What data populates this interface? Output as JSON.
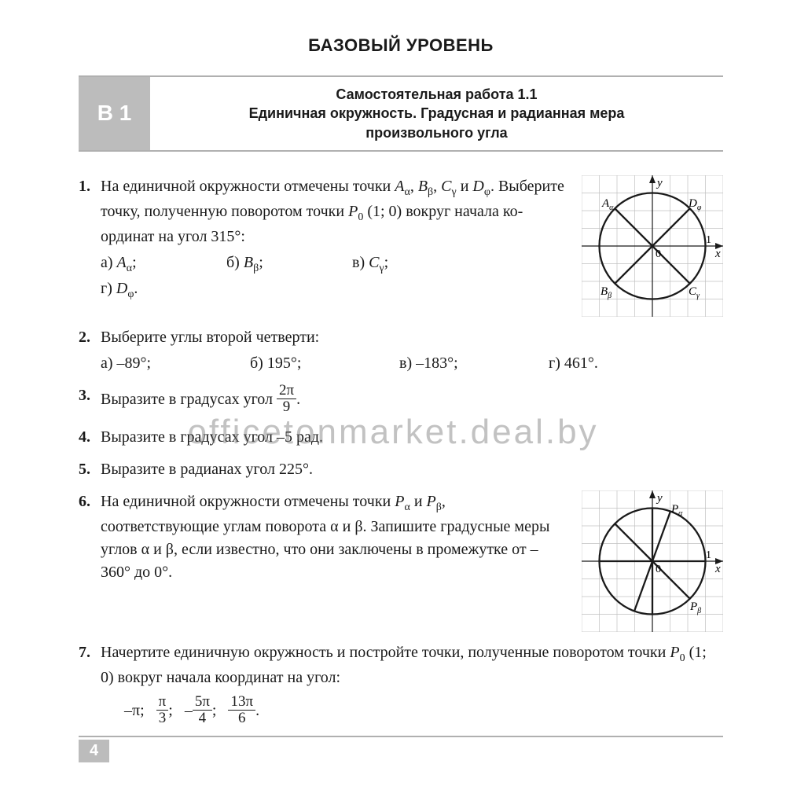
{
  "level_title": "БАЗОВЫЙ УРОВЕНЬ",
  "variant": "В 1",
  "section_title_l1": "Самостоятельная работа 1.1",
  "section_title_l2": "Единичная окружность. Градусная и радианная мера",
  "section_title_l3": "произвольного угла",
  "t1_num": "1.",
  "t1_text_a": "На единичной окружности отмечены точки ",
  "t1_text_b": ". Выберите точку, полученную поворотом точки ",
  "t1_text_c": " вокруг начала ко­ординат на угол 315°:",
  "t1_p0": "P",
  "t1_p0_sub": "0",
  "t1_p0_coords": " (1; 0)",
  "t1_A": "A",
  "t1_A_sub": "α",
  "t1_B": "B",
  "t1_B_sub": "β",
  "t1_C": "C",
  "t1_C_sub": "γ",
  "t1_D": "D",
  "t1_D_sub": "φ",
  "t1_and": " и ",
  "t1_comma": ", ",
  "t1_opt_a": "а) ",
  "t1_opt_b": "б) ",
  "t1_opt_v": "в) ",
  "t1_opt_g": "г) ",
  "t1_semi": ";",
  "t1_dot": ".",
  "t2_num": "2.",
  "t2_text": "Выберите углы второй четверти:",
  "t2_a": "а) –89°;",
  "t2_b": "б) 195°;",
  "t2_v": "в) –183°;",
  "t2_g": "г) 461°.",
  "t3_num": "3.",
  "t3_text_a": "Выразите в градусах угол ",
  "t3_frac_n": "2π",
  "t3_frac_d": "9",
  "t3_dot": ".",
  "t4_num": "4.",
  "t4_text": "Выразите в градусах угол –5 рад.",
  "t5_num": "5.",
  "t5_text": "Выразите в радианах угол 225°.",
  "t6_num": "6.",
  "t6_text_a": "На единичной окружности отмечены точ­ки ",
  "t6_text_b": ", соответствующие углам поворота α и β. Запишите градусные меры углов α и β, если известно, что они заключены в проме­жутке от –360° до 0°.",
  "t6_Pa": "P",
  "t6_Pa_sub": "α",
  "t6_Pb": "P",
  "t6_Pb_sub": "β",
  "t6_and": " и ",
  "t7_num": "7.",
  "t7_text_a": "Начертите единичную окружность и постройте точки, получен­ные поворотом точки ",
  "t7_text_b": " вокруг начала координат на угол:",
  "t7_p0": "P",
  "t7_p0_sub": "0",
  "t7_p0_coords": " (1; 0)",
  "t7_e1": "–π;",
  "t7_e2_n": "π",
  "t7_e2_d": "3",
  "t7_e2_post": ";",
  "t7_e3_pre": "–",
  "t7_e3_n": "5π",
  "t7_e3_d": "4",
  "t7_e3_post": ";",
  "t7_e4_n": "13π",
  "t7_e4_d": "6",
  "t7_e4_post": ".",
  "page_number": "4",
  "watermark": "officetonmarket.deal.by",
  "fig": {
    "size": 180,
    "grid_cells": 8,
    "stroke": "#1a1a1a",
    "grid_stroke": "#c0c0c0",
    "axis_width": 1.2,
    "circle_width": 2.3,
    "grid_width": 0.7,
    "labels1": {
      "y": "y",
      "x": "x",
      "zero": "0",
      "one": "1",
      "Aa": {
        "t": "A",
        "s": "α"
      },
      "Bb": {
        "t": "B",
        "s": "β"
      },
      "Cg": {
        "t": "C",
        "s": "γ"
      },
      "Df": {
        "t": "D",
        "s": "φ"
      }
    },
    "labels2": {
      "y": "y",
      "x": "x",
      "zero": "0",
      "one": "1",
      "Pa": {
        "t": "P",
        "s": "α"
      },
      "Pb": {
        "t": "P",
        "s": "β"
      }
    }
  }
}
